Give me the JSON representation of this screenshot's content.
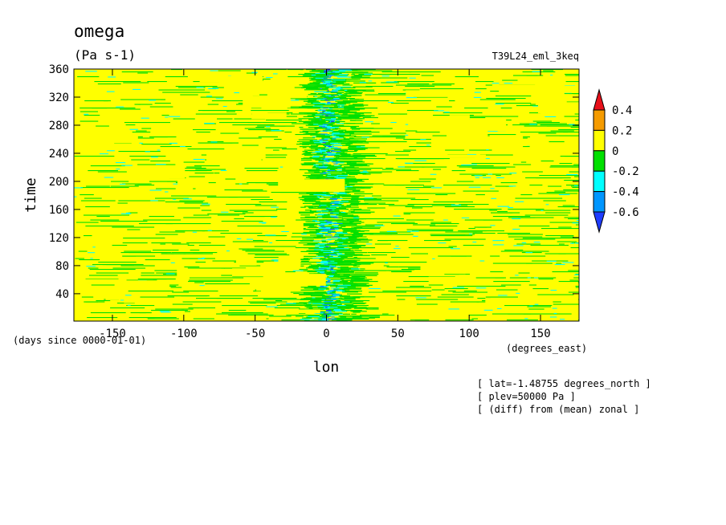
{
  "chart_data": {
    "type": "heatmap",
    "title": "omega",
    "units": "(Pa s-1)",
    "experiment": "T39L24_eml_3keq",
    "xlabel": "lon",
    "xunits": "(degrees_east)",
    "ylabel": "time",
    "yunits": "(days since 0000-01-01)",
    "xlim": [
      -177,
      177
    ],
    "ylim": [
      1,
      360
    ],
    "xticks": [
      -150,
      -100,
      -50,
      0,
      50,
      100,
      150
    ],
    "xtick_labels": [
      "-150",
      "-100",
      "-50",
      "0",
      "50",
      "100",
      "150"
    ],
    "yticks": [
      40,
      80,
      120,
      160,
      200,
      240,
      280,
      320,
      360
    ],
    "ytick_labels": [
      "40",
      "80",
      "120",
      "160",
      "200",
      "240",
      "280",
      "320",
      "360"
    ],
    "colorbar": {
      "levels": [
        -0.6,
        -0.4,
        -0.2,
        0,
        0.2,
        0.4
      ],
      "labels": [
        "0.4",
        "0.2",
        "0",
        "-0.2",
        "-0.4",
        "-0.6"
      ],
      "colors": [
        "#e8101a",
        "#f59b00",
        "#ffff00",
        "#00e000",
        "#00ffff",
        "#0096ff",
        "#1e3cff"
      ]
    },
    "colors": {
      "background": "#ffff00",
      "light_negative": "#00e000",
      "medium_negative": "#00ffff",
      "strong_negative": "#0096ff",
      "strongest_negative": "#1e3cff"
    },
    "features": {
      "strong_descent_center_lon": 0,
      "streak_direction": "zonal"
    },
    "notes": [
      "[ lat=-1.48755 degrees_north ]",
      "[ plev=50000 Pa ]",
      "[ (diff) from (mean) zonal ]"
    ]
  }
}
